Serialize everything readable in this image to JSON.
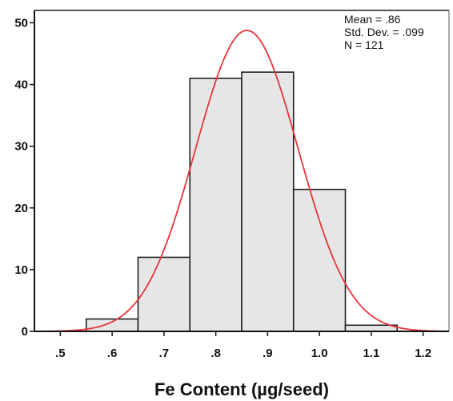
{
  "chart_data": {
    "type": "bar",
    "title": "",
    "xlabel": "Fe Content (µg/seed)",
    "ylabel": "",
    "bins": [
      {
        "from": 0.55,
        "to": 0.65,
        "count": 2
      },
      {
        "from": 0.65,
        "to": 0.75,
        "count": 12
      },
      {
        "from": 0.75,
        "to": 0.85,
        "count": 41
      },
      {
        "from": 0.85,
        "to": 0.95,
        "count": 42
      },
      {
        "from": 0.95,
        "to": 1.05,
        "count": 23
      },
      {
        "from": 1.05,
        "to": 1.15,
        "count": 1
      }
    ],
    "xlim": [
      0.45,
      1.25
    ],
    "ylim": [
      0,
      52
    ],
    "x_ticks": [
      {
        "value": 0.5,
        "label": ".5"
      },
      {
        "value": 0.6,
        "label": ".6"
      },
      {
        "value": 0.7,
        "label": ".7"
      },
      {
        "value": 0.8,
        "label": ".8"
      },
      {
        "value": 0.9,
        "label": ".9"
      },
      {
        "value": 1.0,
        "label": "1.0"
      },
      {
        "value": 1.1,
        "label": "1.1"
      },
      {
        "value": 1.2,
        "label": "1.2"
      }
    ],
    "y_ticks": [
      {
        "value": 0,
        "label": "0"
      },
      {
        "value": 10,
        "label": "10"
      },
      {
        "value": 20,
        "label": "20"
      },
      {
        "value": 30,
        "label": "30"
      },
      {
        "value": 40,
        "label": "40"
      },
      {
        "value": 50,
        "label": "50"
      }
    ],
    "normal_curve": {
      "mean": 0.86,
      "std_dev": 0.099,
      "n": 121,
      "bin_width": 0.1
    },
    "stats_lines": [
      "Mean = .86",
      "Std. Dev. = .099",
      "N = 121"
    ],
    "grid": false,
    "colors": {
      "bar_fill": "#e6e6e6",
      "bar_stroke": "#222222",
      "curve": "#e8343a",
      "frame": "#555555"
    }
  }
}
